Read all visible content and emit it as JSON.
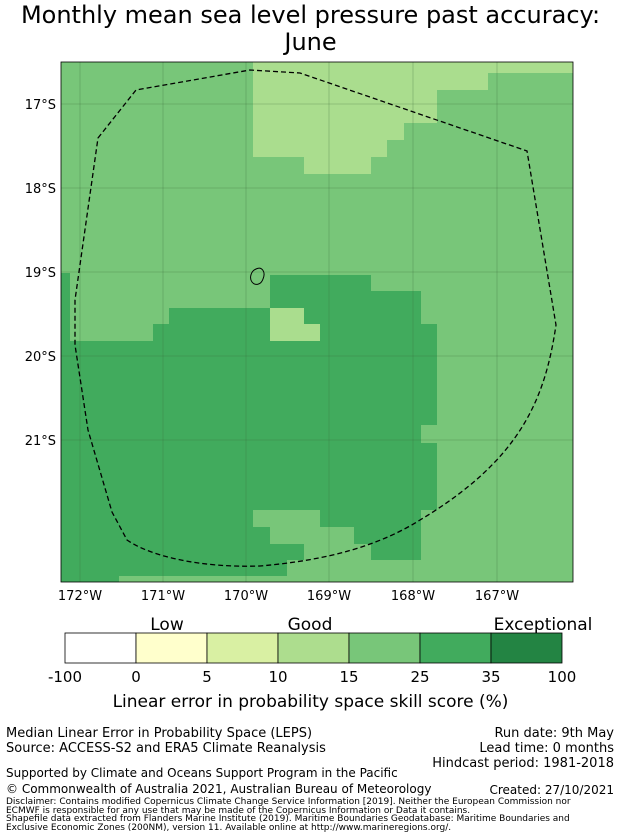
{
  "title_line1": "Monthly mean sea level pressure past accuracy:",
  "title_line2": "June",
  "map": {
    "lat_labels": [
      "17°S",
      "18°S",
      "19°S",
      "20°S",
      "21°S"
    ],
    "lon_labels": [
      "172°W",
      "171°W",
      "170°W",
      "169°W",
      "168°W",
      "167°W"
    ],
    "colors": {
      "c15": "#aadd8e",
      "c25": "#78c679",
      "c35": "#41ab5d"
    }
  },
  "colorbar": {
    "categories": [
      "Low",
      "Good",
      "Exceptional"
    ],
    "ticks": [
      "-100",
      "0",
      "5",
      "10",
      "15",
      "25",
      "35",
      "100"
    ],
    "colors": [
      "#ffffff",
      "#ffffcc",
      "#d9f0a3",
      "#addd8e",
      "#78c679",
      "#41ab5d",
      "#238443"
    ],
    "title": "Linear error in probability space skill score (%)"
  },
  "info": {
    "line1": "Median Linear Error in Probability Space (LEPS)",
    "line2": "Source: ACCESS-S2 and ERA5 Climate Reanalysis",
    "run_date": "Run date: 9th May",
    "lead_time": "Lead time: 0 months",
    "hindcast": "Hindcast period: 1981-2018",
    "supported": "Supported by Climate and Oceans Support Program in the Pacific",
    "copyright": "© Commonwealth of Australia 2021, Australian Bureau of Meteorology",
    "created": "Created: 27/10/2021",
    "disclaimer1": "Disclaimer: Contains modified Copernicus Climate Change Service Information [2019]. Neither the European Commission nor",
    "disclaimer2": "ECMWF is responsible for any use that may be made of the Copernicus Information or Data it contains.",
    "shapefile1": "Shapefile data extracted from Flanders Marine Institute (2019). Maritime Boundaries Geodatabase: Maritime Boundaries and",
    "shapefile2": "Exclusive Economic Zones (200NM), version 11. Available online at http://www.marineregions.org/."
  }
}
